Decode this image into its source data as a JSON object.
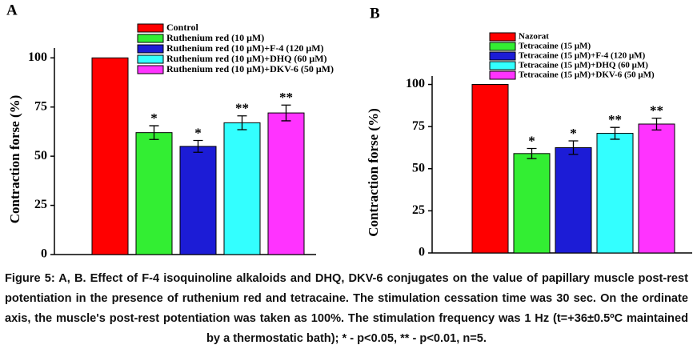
{
  "chart_data": [
    {
      "type": "bar",
      "panel": "A",
      "ylabel": "Contraction forse (%)",
      "ylim": [
        0,
        105
      ],
      "yticks": [
        0,
        25,
        50,
        75,
        100
      ],
      "series": [
        {
          "name": "Control",
          "color": "#ff0000",
          "values": [
            100
          ]
        },
        {
          "name": "Ruthenium red (10 μM)",
          "color": "#33ee33",
          "values": [
            62
          ],
          "errors": [
            3.5
          ],
          "annotation": "*"
        },
        {
          "name": "Ruthenium red (10 μM)+F-4 (120 μM)",
          "color": "#1c1cd6",
          "values": [
            55
          ],
          "errors": [
            3
          ],
          "annotation": "*"
        },
        {
          "name": "Ruthenium red (10 μM)+DHQ (60 μM)",
          "color": "#33ffff",
          "values": [
            67
          ],
          "errors": [
            3.5
          ],
          "annotation": "**"
        },
        {
          "name": "Ruthenium red (10 μM)+DKV-6 (50 μM)",
          "color": "#ff33ff",
          "values": [
            72
          ],
          "errors": [
            4
          ],
          "annotation": "**"
        }
      ]
    },
    {
      "type": "bar",
      "panel": "B",
      "ylabel": "Contraction forse (%)",
      "ylim": [
        0,
        105
      ],
      "yticks": [
        0,
        25,
        50,
        75,
        100
      ],
      "series": [
        {
          "name": "Nazorat",
          "color": "#ff0000",
          "values": [
            100
          ]
        },
        {
          "name": "Tetracaine (15 μM)",
          "color": "#33ee33",
          "values": [
            59
          ],
          "errors": [
            3
          ],
          "annotation": "*"
        },
        {
          "name": "Tetracaine (15 μM)+F-4 (120 μM)",
          "color": "#1c1cd6",
          "values": [
            62.5
          ],
          "errors": [
            4
          ],
          "annotation": "*"
        },
        {
          "name": "Tetracaine (15 μM)+DHQ (60 μM)",
          "color": "#33ffff",
          "values": [
            71
          ],
          "errors": [
            3.5
          ],
          "annotation": "**"
        },
        {
          "name": "Tetracaine (15 μM)+DKV-6 (50 μM)",
          "color": "#ff33ff",
          "values": [
            76.5
          ],
          "errors": [
            3.5
          ],
          "annotation": "**"
        }
      ]
    }
  ],
  "caption": "Figure 5: A, B. Effect of F-4 isoquinoline alkaloids and DHQ, DKV-6 conjugates on the value of papillary muscle post-rest potentiation in the presence of ruthenium red and tetracaine. The stimulation cessation time was 30 sec. On the ordinate axis, the muscle's post-rest potentiation was taken as 100%. The stimulation frequency was 1 Hz (t=+36±0.5ºC maintained by a thermostatic bath); * - p<0.05, ** - p<0.01, n=5."
}
